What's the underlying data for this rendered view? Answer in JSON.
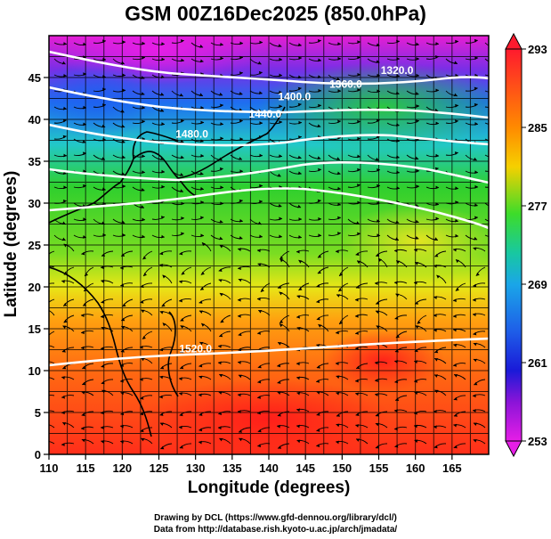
{
  "title": "GSM 00Z16Dec2025 (850.0hPa)",
  "x_axis": {
    "label": "Longitude (degrees)",
    "range": [
      110,
      170
    ],
    "ticks": [
      110,
      115,
      120,
      125,
      130,
      135,
      140,
      145,
      150,
      155,
      160,
      165
    ]
  },
  "y_axis": {
    "label": "Latitude  (degrees)",
    "range": [
      0,
      50
    ],
    "ticks": [
      0,
      5,
      10,
      15,
      20,
      25,
      30,
      35,
      40,
      45
    ]
  },
  "colorbar": {
    "min": 253,
    "max": 293,
    "ticks": [
      293,
      285,
      277,
      269,
      261,
      253
    ],
    "colors": [
      "#ff1a2e",
      "#ff8a00",
      "#f6d000",
      "#3ddc2a",
      "#18c8a0",
      "#1aa6e8",
      "#1e5ee8",
      "#1a1ad8",
      "#8a14d8",
      "#e61ee6"
    ]
  },
  "field": {
    "kind": "temperature_shading_with_streamlines_and_height_contours",
    "palette": {
      "deep_red": "#ff2e1a",
      "orange": "#ff7a10",
      "yellow": "#e8e616",
      "green": "#2ecf2e",
      "cyan": "#22c8c8",
      "blue": "#1e6ef0",
      "magenta": "#e61ed2"
    }
  },
  "contours": [
    {
      "label": "1320.0",
      "lon": 157.5,
      "lat": 45.4
    },
    {
      "label": "1360.0",
      "lon": 150.5,
      "lat": 43.8
    },
    {
      "label": "1400.0",
      "lon": 143.5,
      "lat": 42.3
    },
    {
      "label": "1440.0",
      "lon": 139.5,
      "lat": 40.2
    },
    {
      "label": "1480.0",
      "lon": 129.5,
      "lat": 37.8
    },
    {
      "label": "1520.0",
      "lon": 130.0,
      "lat": 12.2
    }
  ],
  "credits": [
    "Drawing by DCL (https://www.gfd-dennou.org/library/dcl/)",
    "Data from http://database.rish.kyoto-u.ac.jp/arch/jmadata/"
  ]
}
